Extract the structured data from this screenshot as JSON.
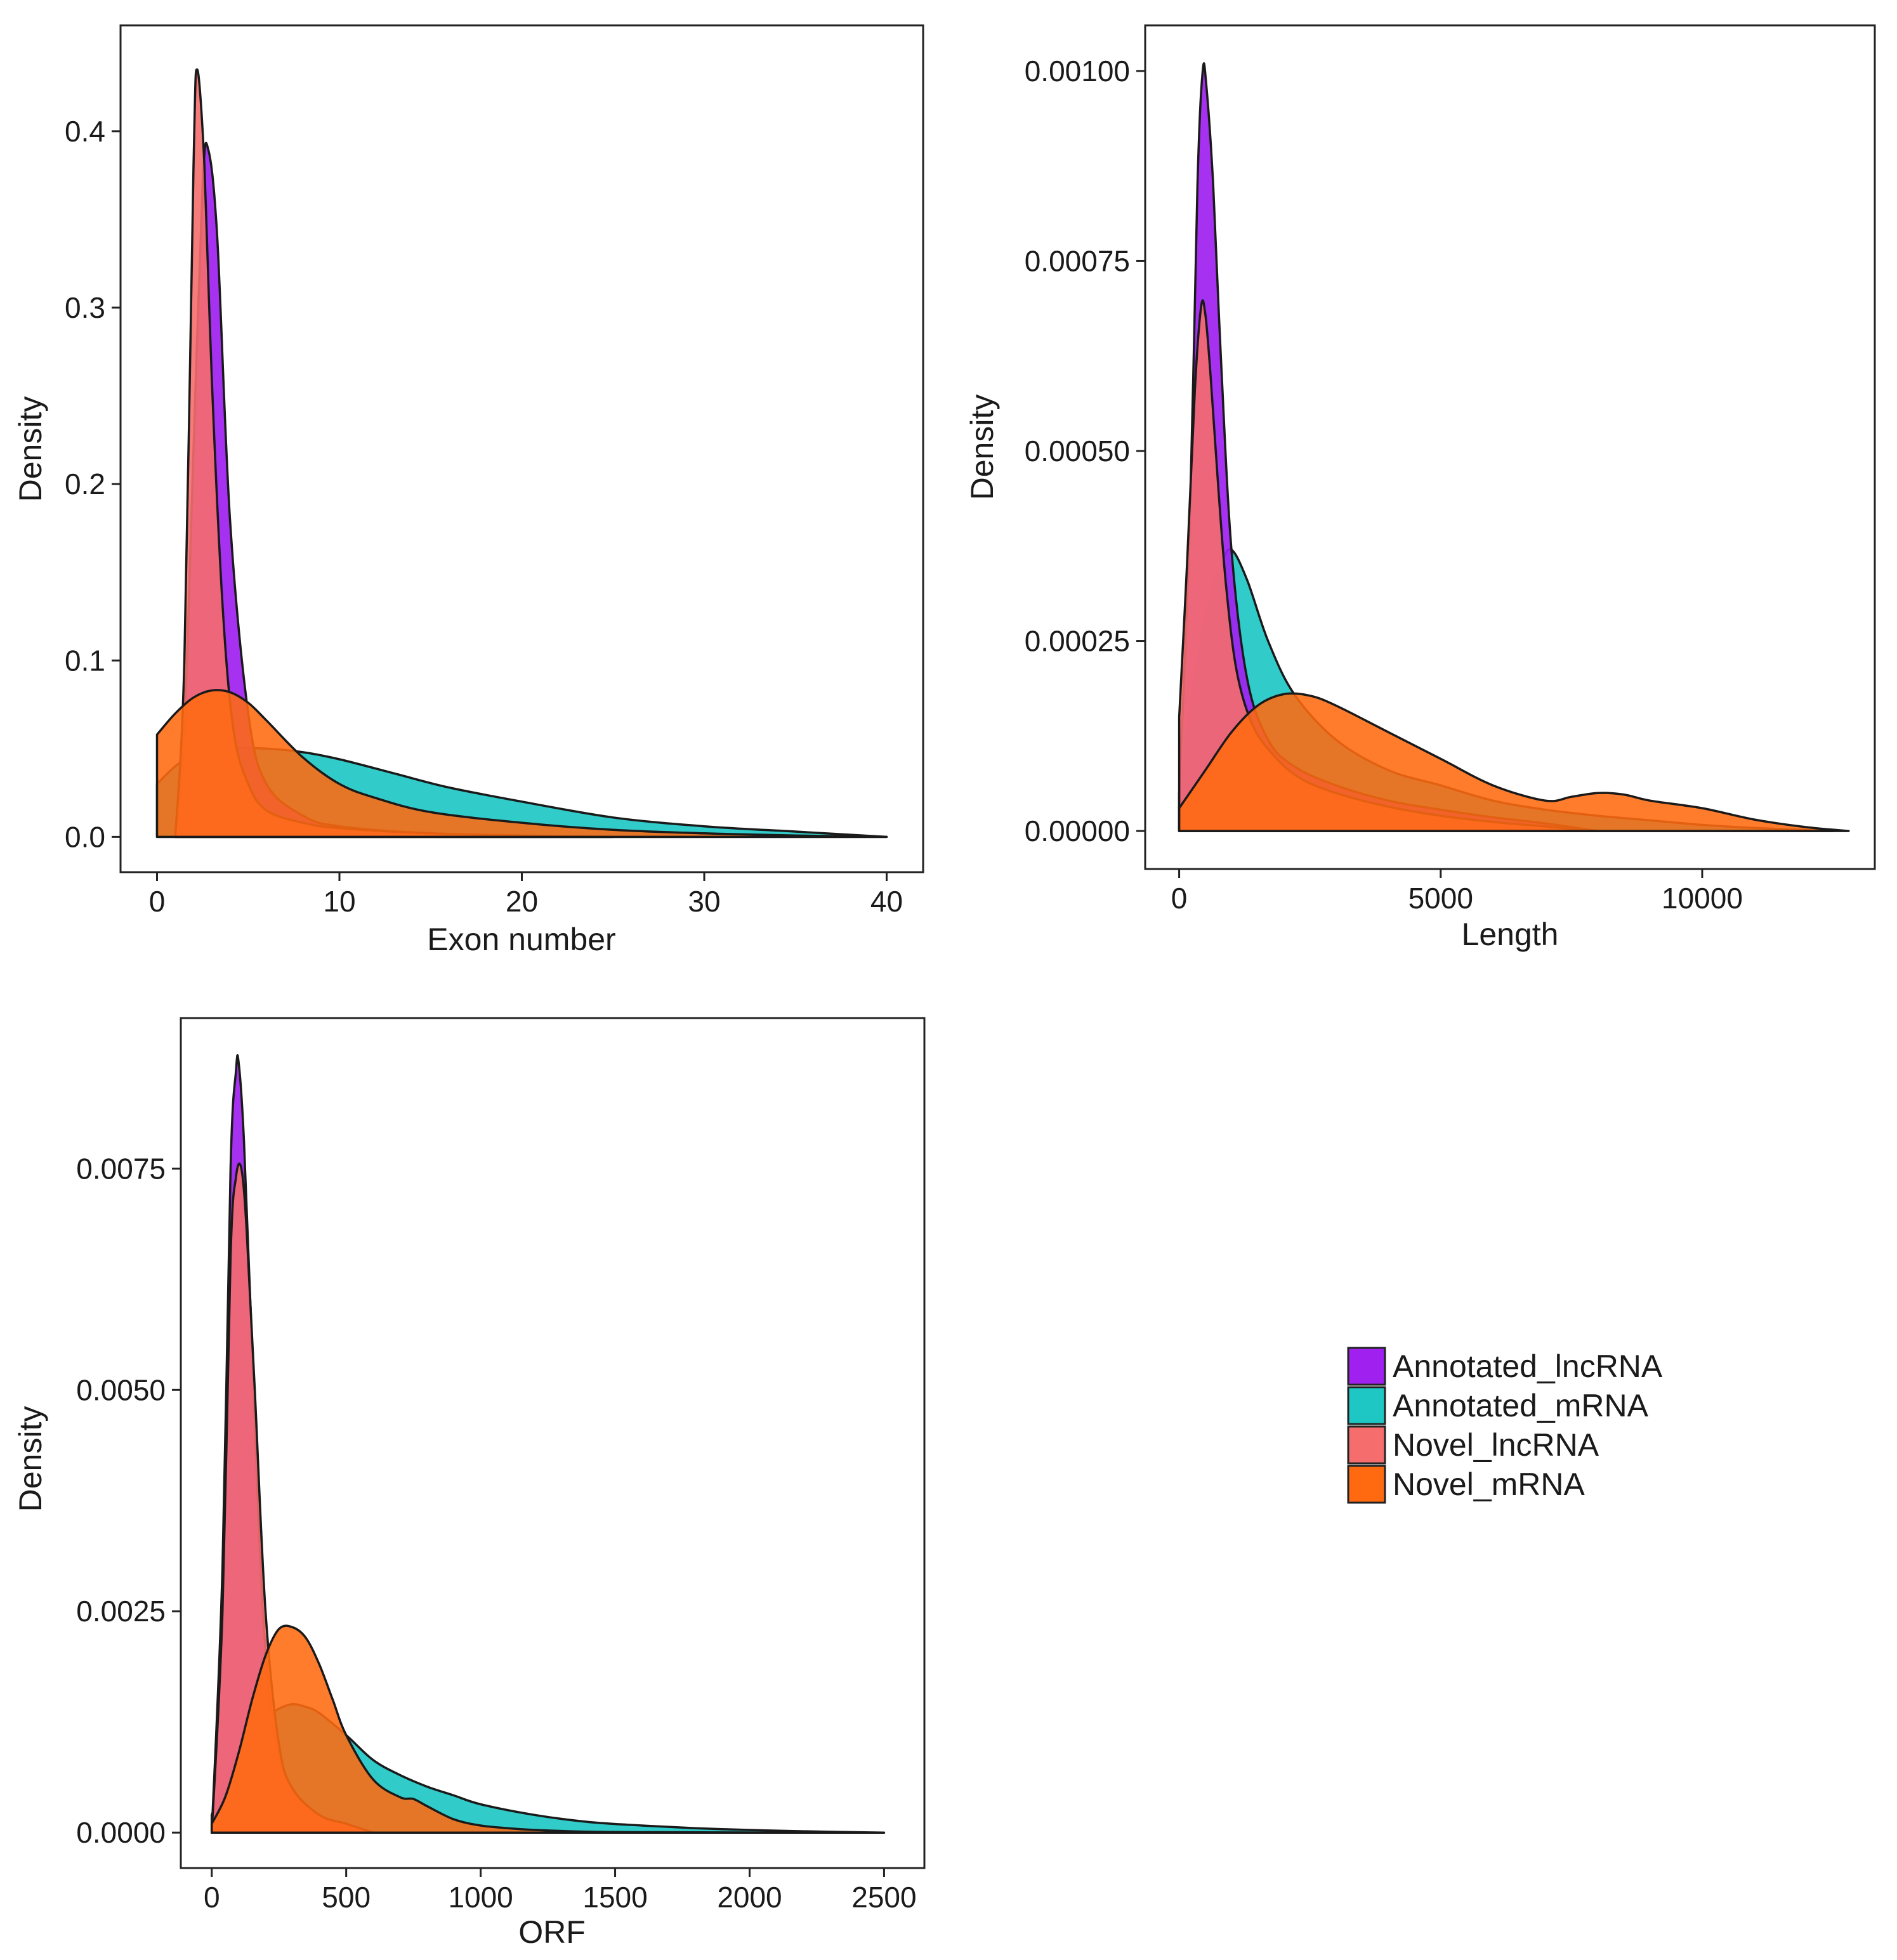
{
  "colors": {
    "Annotated_lncRNA": "#a020f0",
    "Annotated_mRNA": "#1fc7c4",
    "Novel_lncRNA": "#f56d6d",
    "Novel_mRNA": "#ff6a10"
  },
  "legend": {
    "items": [
      {
        "label": "Annotated_lncRNA",
        "key": "Annotated_lncRNA"
      },
      {
        "label": "Annotated_mRNA",
        "key": "Annotated_mRNA"
      },
      {
        "label": "Novel_lncRNA",
        "key": "Novel_lncRNA"
      },
      {
        "label": "Novel_mRNA",
        "key": "Novel_mRNA"
      }
    ]
  },
  "chart_data": [
    {
      "id": "exon",
      "type": "area",
      "title": "",
      "xlabel": "Exon number",
      "ylabel": "Density",
      "xlim": [
        -2,
        42
      ],
      "ylim": [
        -0.02,
        0.46
      ],
      "xticks": [
        0,
        10,
        20,
        30,
        40
      ],
      "yticks": [
        0.0,
        0.1,
        0.2,
        0.3,
        0.4
      ],
      "ytick_labels": [
        "0.0",
        "0.1",
        "0.2",
        "0.3",
        "0.4"
      ],
      "xtick_labels": [
        "0",
        "10",
        "20",
        "30",
        "40"
      ],
      "grid": false,
      "series": [
        {
          "name": "Annotated_mRNA",
          "alpha": 0.92,
          "x": [
            0,
            1,
            2,
            4,
            6,
            8,
            10,
            13,
            16,
            20,
            25,
            30,
            35,
            40
          ],
          "y": [
            0.03,
            0.04,
            0.046,
            0.05,
            0.05,
            0.048,
            0.044,
            0.036,
            0.028,
            0.02,
            0.011,
            0.006,
            0.003,
            0.0
          ]
        },
        {
          "name": "Annotated_lncRNA",
          "alpha": 0.92,
          "x": [
            1,
            1.5,
            2,
            2.5,
            2.8,
            3.3,
            4,
            5,
            6,
            8,
            10,
            15,
            20,
            25
          ],
          "y": [
            0.0,
            0.06,
            0.22,
            0.37,
            0.39,
            0.34,
            0.18,
            0.07,
            0.03,
            0.012,
            0.006,
            0.002,
            0.0008,
            0.0
          ]
        },
        {
          "name": "Novel_lncRNA",
          "alpha": 0.9,
          "x": [
            1,
            1.5,
            2,
            2.2,
            2.6,
            3,
            3.6,
            4.2,
            5,
            6,
            8,
            10,
            15,
            20,
            25
          ],
          "y": [
            0.0,
            0.1,
            0.38,
            0.435,
            0.38,
            0.26,
            0.13,
            0.06,
            0.03,
            0.015,
            0.008,
            0.005,
            0.002,
            0.0008,
            0.0
          ]
        },
        {
          "name": "Novel_mRNA",
          "alpha": 0.88,
          "x": [
            0,
            1,
            2,
            3,
            4,
            5,
            6,
            8,
            10,
            12,
            15,
            20,
            25,
            30,
            35,
            40
          ],
          "y": [
            0.058,
            0.07,
            0.079,
            0.083,
            0.082,
            0.076,
            0.066,
            0.045,
            0.03,
            0.022,
            0.014,
            0.008,
            0.004,
            0.002,
            0.0008,
            0.0
          ]
        }
      ]
    },
    {
      "id": "length",
      "type": "area",
      "title": "",
      "xlabel": "Length",
      "ylabel": "Density",
      "xlim": [
        -650,
        13300
      ],
      "ylim": [
        -5e-05,
        0.00106
      ],
      "xticks": [
        0,
        5000,
        10000
      ],
      "yticks": [
        0.0,
        0.00025,
        0.0005,
        0.00075,
        0.001
      ],
      "ytick_labels": [
        "0.00000",
        "0.00025",
        "0.00050",
        "0.00075",
        "0.00100"
      ],
      "xtick_labels": [
        "0",
        "5000",
        "10000"
      ],
      "grid": false,
      "series": [
        {
          "name": "Annotated_mRNA",
          "alpha": 0.92,
          "x": [
            0,
            200,
            500,
            800,
            1000,
            1300,
            1700,
            2200,
            3000,
            4000,
            5000,
            6000,
            7000,
            8000,
            9000,
            10000,
            11000,
            12500
          ],
          "y": [
            5e-05,
            0.00015,
            0.00028,
            0.00035,
            0.00037,
            0.00033,
            0.00025,
            0.00018,
            0.00012,
            8e-05,
            6e-05,
            4e-05,
            2.8e-05,
            2e-05,
            1.4e-05,
            8e-06,
            4e-06,
            0.0
          ]
        },
        {
          "name": "Annotated_lncRNA",
          "alpha": 0.92,
          "x": [
            0,
            200,
            350,
            450,
            520,
            650,
            800,
            1000,
            1300,
            1700,
            2200,
            3000,
            4000,
            5000,
            6000,
            7000,
            8000
          ],
          "y": [
            5e-05,
            0.0004,
            0.00085,
            0.001,
            0.00098,
            0.00085,
            0.00062,
            0.00037,
            0.0002,
            0.00012,
            8.5e-05,
            6e-05,
            4e-05,
            2.8e-05,
            1.8e-05,
            1e-05,
            0.0
          ]
        },
        {
          "name": "Novel_lncRNA",
          "alpha": 0.9,
          "x": [
            0,
            150,
            300,
            420,
            500,
            600,
            750,
            900,
            1100,
            1400,
            1800,
            2300,
            3000,
            4000,
            5000,
            6000,
            7000,
            8000
          ],
          "y": [
            0.00015,
            0.00035,
            0.00058,
            0.00069,
            0.00068,
            0.0006,
            0.00045,
            0.00032,
            0.00021,
            0.00014,
            0.0001,
            7e-05,
            5e-05,
            3.2e-05,
            2e-05,
            1.2e-05,
            6e-06,
            0.0
          ]
        },
        {
          "name": "Novel_mRNA",
          "alpha": 0.88,
          "x": [
            0,
            500,
            1000,
            1500,
            2000,
            2500,
            3000,
            4000,
            5000,
            6000,
            7000,
            7500,
            8000,
            8500,
            9000,
            10000,
            11000,
            12000,
            12800
          ],
          "y": [
            3e-05,
            8e-05,
            0.00013,
            0.000165,
            0.00018,
            0.000178,
            0.000165,
            0.00013,
            9.5e-05,
            6e-05,
            4e-05,
            4.5e-05,
            5e-05,
            4.8e-05,
            4e-05,
            3e-05,
            1.5e-05,
            5e-06,
            0.0
          ]
        }
      ]
    },
    {
      "id": "orf",
      "type": "area",
      "title": "",
      "xlabel": "ORF",
      "ylabel": "Density",
      "xlim": [
        -115,
        2650
      ],
      "ylim": [
        -0.0004,
        0.0092
      ],
      "xticks": [
        0,
        500,
        1000,
        1500,
        2000,
        2500
      ],
      "yticks": [
        0.0,
        0.0025,
        0.005,
        0.0075
      ],
      "ytick_labels": [
        "0.0000",
        "0.0025",
        "0.0050",
        "0.0075"
      ],
      "xtick_labels": [
        "0",
        "500",
        "1000",
        "1500",
        "2000",
        "2500"
      ],
      "grid": false,
      "series": [
        {
          "name": "Annotated_mRNA",
          "alpha": 0.92,
          "x": [
            0,
            50,
            100,
            150,
            200,
            250,
            300,
            350,
            400,
            500,
            600,
            700,
            800,
            900,
            1000,
            1200,
            1400,
            1600,
            1800,
            2000,
            2200,
            2500
          ],
          "y": [
            0.0002,
            0.0006,
            0.0009,
            0.0011,
            0.0013,
            0.0014,
            0.00145,
            0.00142,
            0.00135,
            0.0011,
            0.00082,
            0.00065,
            0.00052,
            0.00042,
            0.00032,
            0.0002,
            0.00012,
            8e-05,
            5e-05,
            3e-05,
            1.5e-05,
            0.0
          ]
        },
        {
          "name": "Annotated_lncRNA",
          "alpha": 0.92,
          "x": [
            0,
            40,
            70,
            90,
            100,
            120,
            150,
            190,
            240,
            300,
            400,
            500,
            600
          ],
          "y": [
            0.0,
            0.003,
            0.0075,
            0.0086,
            0.0087,
            0.0078,
            0.0055,
            0.0025,
            0.001,
            0.0005,
            0.0002,
            0.0001,
            0.0
          ]
        },
        {
          "name": "Novel_lncRNA",
          "alpha": 0.9,
          "x": [
            0,
            40,
            70,
            90,
            110,
            130,
            160,
            200,
            250,
            300,
            400,
            500,
            600
          ],
          "y": [
            0.0,
            0.0025,
            0.0065,
            0.0074,
            0.0075,
            0.0068,
            0.005,
            0.0025,
            0.001,
            0.0005,
            0.0002,
            0.0001,
            0.0
          ]
        },
        {
          "name": "Novel_mRNA",
          "alpha": 0.88,
          "x": [
            0,
            50,
            100,
            150,
            200,
            250,
            300,
            350,
            400,
            450,
            500,
            600,
            700,
            750,
            800,
            900,
            1000,
            1100,
            1200,
            1400,
            1600,
            2000,
            2500
          ],
          "y": [
            0.0001,
            0.0004,
            0.0009,
            0.0015,
            0.002,
            0.0023,
            0.00232,
            0.0022,
            0.0019,
            0.0015,
            0.0011,
            0.0006,
            0.0004,
            0.00038,
            0.0003,
            0.00015,
            8e-05,
            5e-05,
            3e-05,
            1e-05,
            5e-06,
            1e-06,
            0.0
          ]
        }
      ]
    }
  ]
}
